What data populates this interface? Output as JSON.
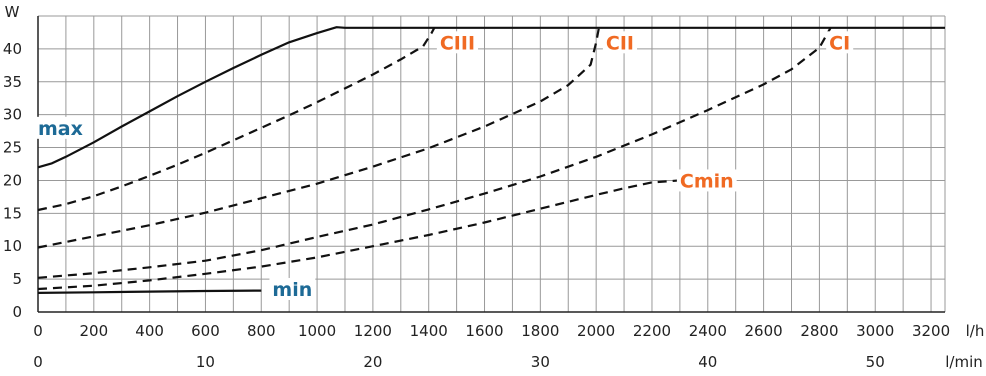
{
  "chart_data": {
    "type": "line",
    "ylabel": "W",
    "xlabel": "l/h",
    "x2label": "l/min",
    "xlim": [
      0,
      3250
    ],
    "ylim": [
      0,
      45
    ],
    "x_ticks": [
      0,
      200,
      400,
      600,
      800,
      1000,
      1200,
      1400,
      1600,
      1800,
      2000,
      2200,
      2400,
      2600,
      2800,
      3000,
      3200
    ],
    "x_tick_labels": [
      "0",
      "200",
      "400",
      "600",
      "800",
      "1000",
      "1200",
      "1400",
      "1600",
      "1800",
      "2000",
      "2200",
      "2400",
      "2600",
      "2800",
      "3000",
      "3200"
    ],
    "x2_ticks": [
      0,
      10,
      20,
      30,
      40,
      50
    ],
    "x2_tick_labels": [
      "0",
      "10",
      "20",
      "30",
      "40",
      "50"
    ],
    "y_ticks": [
      0,
      5,
      10,
      15,
      20,
      25,
      30,
      35,
      40
    ],
    "y_tick_labels": [
      "0",
      "5",
      "10",
      "15",
      "20",
      "25",
      "30",
      "35",
      "40"
    ],
    "grid": true,
    "colors": {
      "grid": "#999999",
      "axis": "#222222",
      "curve": "#111111",
      "limit_label": "#1d6a96",
      "speed_label": "#f06a23"
    },
    "series": [
      {
        "name": "max",
        "style": "solid",
        "label_color": "limit",
        "label_anchor": [
          0,
          28
        ],
        "points": [
          [
            0,
            22
          ],
          [
            50,
            22.6
          ],
          [
            100,
            23.6
          ],
          [
            200,
            25.8
          ],
          [
            300,
            28.2
          ],
          [
            400,
            30.5
          ],
          [
            500,
            32.8
          ],
          [
            600,
            35
          ],
          [
            700,
            37.1
          ],
          [
            800,
            39.1
          ],
          [
            900,
            41
          ],
          [
            1000,
            42.4
          ],
          [
            1070,
            43.3
          ],
          [
            1100,
            43.2
          ],
          [
            3250,
            43.2
          ]
        ]
      },
      {
        "name": "CIII",
        "style": "dashed",
        "label_color": "speed",
        "label_anchor": [
          1440,
          41
        ],
        "points": [
          [
            0,
            15.5
          ],
          [
            100,
            16.4
          ],
          [
            200,
            17.6
          ],
          [
            300,
            19.1
          ],
          [
            400,
            20.7
          ],
          [
            500,
            22.4
          ],
          [
            600,
            24.2
          ],
          [
            700,
            26.1
          ],
          [
            800,
            28
          ],
          [
            900,
            29.9
          ],
          [
            1000,
            31.9
          ],
          [
            1100,
            34
          ],
          [
            1200,
            36.1
          ],
          [
            1300,
            38.4
          ],
          [
            1380,
            40.4
          ],
          [
            1410,
            42.4
          ],
          [
            1420,
            43.2
          ]
        ]
      },
      {
        "name": "CII",
        "style": "dashed",
        "label_color": "speed",
        "label_anchor": [
          2035,
          41
        ],
        "points": [
          [
            0,
            9.8
          ],
          [
            200,
            11.5
          ],
          [
            400,
            13.2
          ],
          [
            600,
            15.1
          ],
          [
            800,
            17.3
          ],
          [
            1000,
            19.5
          ],
          [
            1200,
            22.1
          ],
          [
            1400,
            24.9
          ],
          [
            1600,
            28.2
          ],
          [
            1800,
            32
          ],
          [
            1900,
            34.5
          ],
          [
            1980,
            37.6
          ],
          [
            2000,
            41
          ],
          [
            2010,
            43.2
          ]
        ]
      },
      {
        "name": "CI",
        "style": "dashed",
        "label_color": "speed",
        "label_anchor": [
          2835,
          41
        ],
        "points": [
          [
            0,
            5.2
          ],
          [
            200,
            5.9
          ],
          [
            400,
            6.8
          ],
          [
            600,
            7.8
          ],
          [
            800,
            9.4
          ],
          [
            1000,
            11.4
          ],
          [
            1200,
            13.3
          ],
          [
            1400,
            15.6
          ],
          [
            1600,
            18
          ],
          [
            1800,
            20.6
          ],
          [
            2000,
            23.6
          ],
          [
            2200,
            27
          ],
          [
            2400,
            30.7
          ],
          [
            2600,
            34.6
          ],
          [
            2700,
            36.9
          ],
          [
            2800,
            40.2
          ],
          [
            2840,
            43.2
          ]
        ]
      },
      {
        "name": "Cmin",
        "style": "dashed",
        "label_color": "speed",
        "label_anchor": [
          2300,
          20
        ],
        "points": [
          [
            0,
            3.5
          ],
          [
            200,
            4
          ],
          [
            400,
            4.8
          ],
          [
            600,
            5.8
          ],
          [
            800,
            6.9
          ],
          [
            1000,
            8.3
          ],
          [
            1200,
            10
          ],
          [
            1400,
            11.7
          ],
          [
            1600,
            13.6
          ],
          [
            1800,
            15.7
          ],
          [
            2000,
            17.8
          ],
          [
            2100,
            18.8
          ],
          [
            2200,
            19.7
          ],
          [
            2300,
            20
          ],
          [
            2320,
            20
          ]
        ]
      },
      {
        "name": "min",
        "style": "solid",
        "label_color": "limit",
        "label_anchor": [
          840,
          3.5
        ],
        "points": [
          [
            0,
            2.9
          ],
          [
            200,
            3
          ],
          [
            400,
            3.1
          ],
          [
            600,
            3.2
          ],
          [
            800,
            3.25
          ]
        ]
      }
    ]
  }
}
